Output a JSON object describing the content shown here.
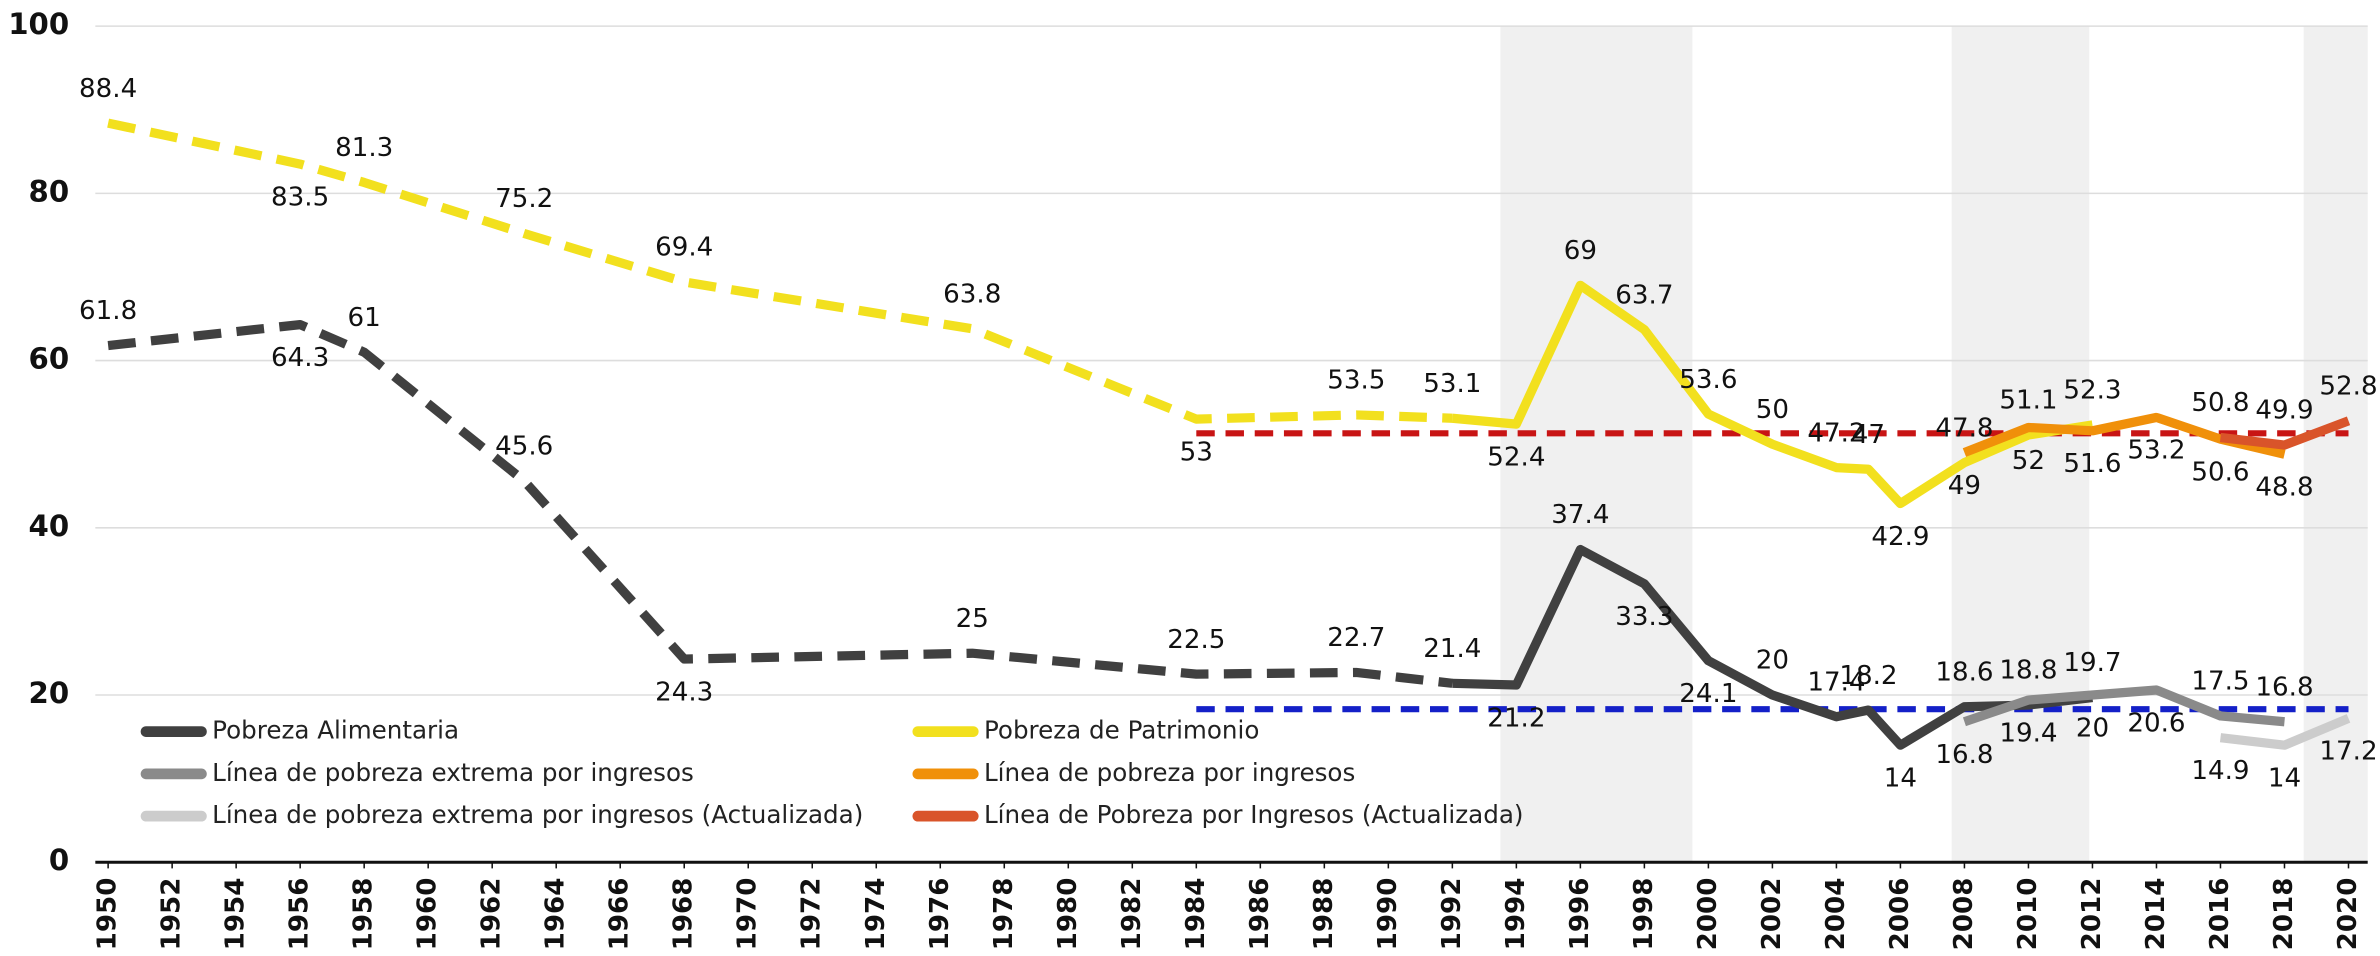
{
  "chart_data": {
    "type": "line",
    "xlim": [
      1949.6,
      2020.6
    ],
    "xticks": [
      1950,
      1952,
      1954,
      1956,
      1958,
      1960,
      1962,
      1964,
      1966,
      1968,
      1970,
      1972,
      1974,
      1976,
      1978,
      1980,
      1982,
      1984,
      1986,
      1988,
      1990,
      1992,
      1994,
      1996,
      1998,
      2000,
      2002,
      2004,
      2006,
      2008,
      2010,
      2012,
      2014,
      2016,
      2018,
      2020
    ],
    "ylim": [
      0,
      100
    ],
    "yticks": [
      0,
      20,
      40,
      60,
      80,
      100
    ],
    "grid": true,
    "shaded_periods": [
      [
        1993.5,
        1999.5
      ],
      [
        2007.6,
        2011.9
      ],
      [
        2018.6,
        2020.6
      ]
    ],
    "reference_lines": [
      {
        "value": 51.3,
        "color": "#c81414",
        "x": [
          1984,
          2020
        ]
      },
      {
        "value": 18.3,
        "color": "#1420c8",
        "x": [
          1984,
          2020
        ]
      }
    ],
    "series": [
      {
        "name": "Pobreza Alimentaria",
        "color": "#404040",
        "dashed_through": 1992,
        "x": [
          1950,
          1956,
          1958,
          1963,
          1968,
          1977,
          1984,
          1989,
          1992,
          1994,
          1996,
          1998,
          2000,
          2002,
          2004,
          2005,
          2006,
          2008,
          2010,
          2012
        ],
        "values": [
          61.8,
          64.3,
          61.0,
          45.6,
          24.3,
          25.0,
          22.5,
          22.7,
          21.4,
          21.2,
          37.4,
          33.3,
          24.1,
          20.0,
          17.4,
          18.2,
          14.0,
          18.6,
          18.8,
          19.7
        ]
      },
      {
        "name": "Pobreza de Patrimonio",
        "color": "#f2e01e",
        "dashed_through": 1992,
        "x": [
          1950,
          1956,
          1958,
          1963,
          1968,
          1977,
          1984,
          1989,
          1992,
          1994,
          1996,
          1998,
          2000,
          2002,
          2004,
          2005,
          2006,
          2008,
          2010,
          2012
        ],
        "values": [
          88.4,
          83.5,
          81.3,
          75.2,
          69.4,
          63.8,
          53.0,
          53.5,
          53.1,
          52.4,
          69.0,
          63.7,
          53.6,
          50.0,
          47.2,
          47.0,
          42.9,
          47.8,
          51.1,
          52.3
        ]
      },
      {
        "name": "Línea de pobreza extrema por ingresos",
        "color": "#8a8a8a",
        "x": [
          2008,
          2010,
          2012,
          2014,
          2016,
          2018
        ],
        "values": [
          16.8,
          19.4,
          20.0,
          20.6,
          17.5,
          16.8
        ]
      },
      {
        "name": "Línea de pobreza por ingresos",
        "color": "#f0900a",
        "x": [
          2008,
          2010,
          2012,
          2014,
          2016,
          2018
        ],
        "values": [
          49.0,
          52.0,
          51.6,
          53.2,
          50.6,
          48.8
        ]
      },
      {
        "name": "Línea de pobreza extrema por ingresos (Actualizada)",
        "color": "#cccccc",
        "x": [
          2016,
          2018,
          2020
        ],
        "values": [
          14.9,
          14.0,
          17.2
        ]
      },
      {
        "name": "Línea de Pobreza por Ingresos (Actualizada)",
        "color": "#d9542a",
        "x": [
          2016,
          2018,
          2020
        ],
        "values": [
          50.8,
          49.9,
          52.8
        ]
      }
    ]
  }
}
